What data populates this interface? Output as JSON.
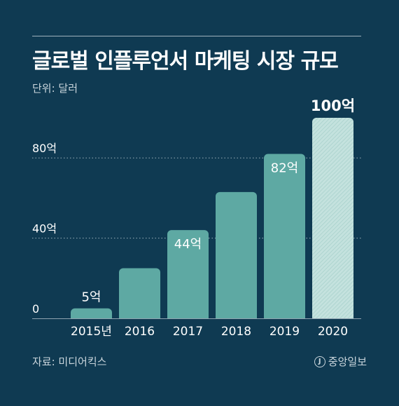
{
  "title": "글로벌 인플루언서 마케팅 시장 규모",
  "unit_label": "단위: 달러",
  "source": "자료: 미디어킥스",
  "brand": {
    "logo_glyph": "J",
    "name": "중앙일보"
  },
  "colors": {
    "background": "#0f3a52",
    "bar": "#5ea9a3",
    "bar_highlight": "#b9dcd8",
    "text": "#ffffff",
    "muted": "#c9d5dc",
    "grid": "#c9d5dc"
  },
  "chart_data": {
    "type": "bar",
    "title": "글로벌 인플루언서 마케팅 시장 규모",
    "ylabel": "",
    "xlabel": "",
    "unit": "달러",
    "categories": [
      "2015년",
      "2016",
      "2017",
      "2018",
      "2019",
      "2020"
    ],
    "values": [
      5,
      25,
      44,
      63,
      82,
      100
    ],
    "value_labels": [
      "5억",
      "",
      "44억",
      "",
      "82억",
      "100억"
    ],
    "highlight_index": 5,
    "ylim": [
      0,
      100
    ],
    "y_ticks": [
      0,
      40,
      80
    ],
    "y_tick_labels": [
      "0",
      "40억",
      "80억"
    ],
    "gridlines": [
      40,
      80
    ],
    "grid": true,
    "legend": "none"
  }
}
